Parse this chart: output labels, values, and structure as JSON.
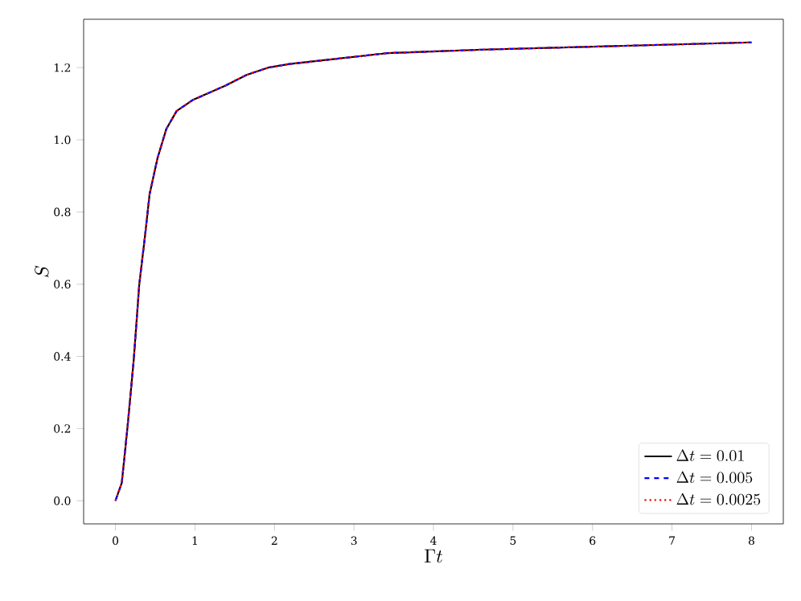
{
  "chart_data": {
    "type": "line",
    "xlabel": "\\Gamma t",
    "ylabel": "S",
    "x": [
      0,
      0.08,
      0.15,
      0.23,
      0.3,
      0.37,
      0.43,
      0.53,
      0.64,
      0.77,
      0.97,
      1.38,
      1.65,
      1.92,
      2.19,
      2.6,
      3.41,
      4.63,
      6.32,
      8.0
    ],
    "series": [
      {
        "name": "\\Delta t = 0.01",
        "color": "#000000",
        "line_style": "solid",
        "values": [
          0,
          0.05,
          0.2,
          0.39,
          0.6,
          0.73,
          0.85,
          0.95,
          1.03,
          1.08,
          1.11,
          1.15,
          1.18,
          1.2,
          1.21,
          1.22,
          1.24,
          1.25,
          1.26,
          1.27
        ]
      },
      {
        "name": "\\Delta t = 0.005",
        "color": "#0000ff",
        "line_style": "dashed",
        "values": [
          0,
          0.05,
          0.2,
          0.39,
          0.6,
          0.73,
          0.85,
          0.95,
          1.03,
          1.08,
          1.11,
          1.15,
          1.18,
          1.2,
          1.21,
          1.22,
          1.24,
          1.25,
          1.26,
          1.27
        ]
      },
      {
        "name": "\\Delta t = 0.0025",
        "color": "#ff0000",
        "line_style": "dotted",
        "values": [
          0,
          0.05,
          0.2,
          0.39,
          0.6,
          0.73,
          0.85,
          0.95,
          1.03,
          1.08,
          1.11,
          1.15,
          1.18,
          1.2,
          1.21,
          1.22,
          1.24,
          1.25,
          1.26,
          1.27
        ]
      }
    ],
    "xlim": [
      -0.4,
      8.4
    ],
    "ylim": [
      -0.064,
      1.334
    ],
    "xticks": [
      0,
      1,
      2,
      3,
      4,
      5,
      6,
      7,
      8
    ],
    "yticks": [
      {
        "value": 0,
        "label": "0.0"
      },
      {
        "value": 0.2,
        "label": "0.2"
      },
      {
        "value": 0.4,
        "label": "0.4"
      },
      {
        "value": 0.6,
        "label": "0.6"
      },
      {
        "value": 0.8,
        "label": "0.8"
      },
      {
        "value": 1.0,
        "label": "1.0"
      },
      {
        "value": 1.2,
        "label": "1.2"
      }
    ],
    "legend": "bottom right",
    "grid": false,
    "marker": "none"
  }
}
